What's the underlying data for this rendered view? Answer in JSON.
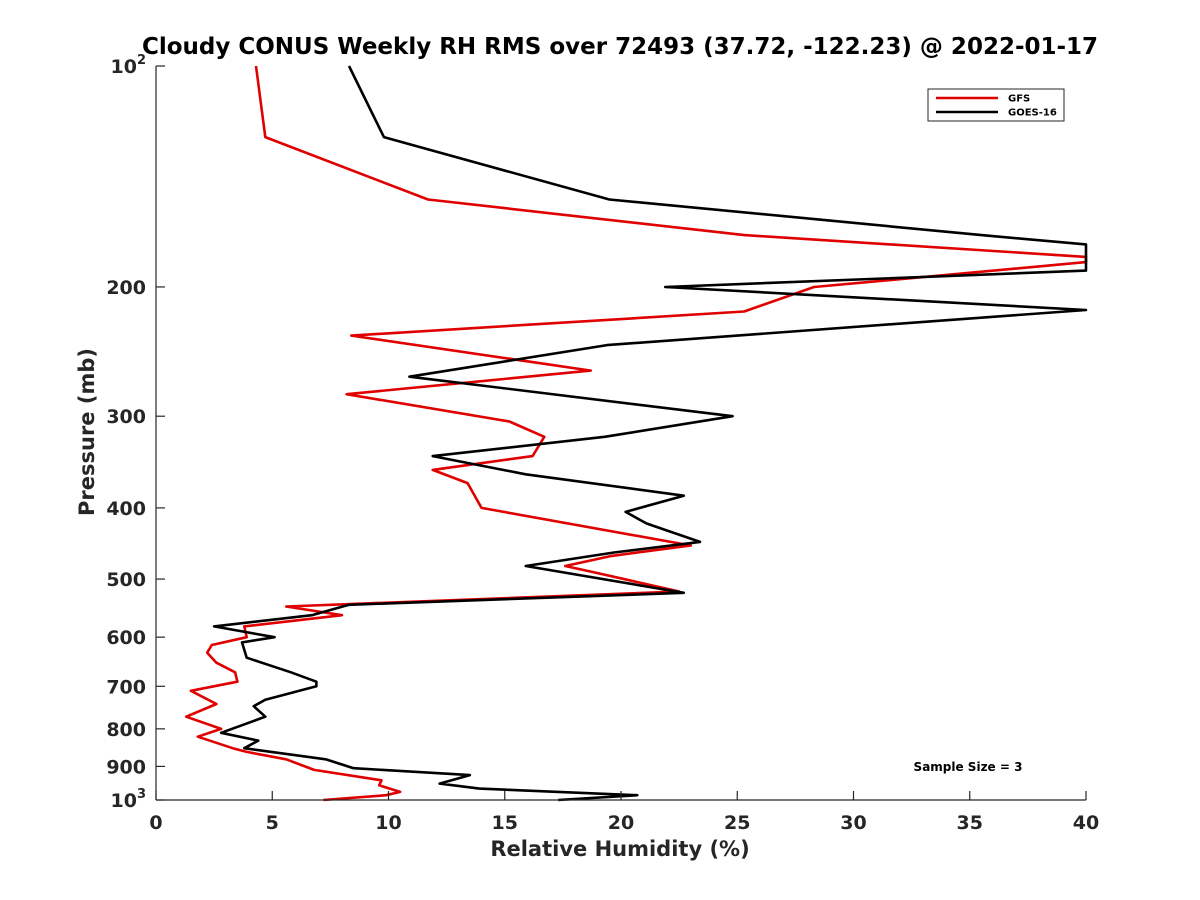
{
  "chart_data": {
    "type": "line",
    "title": "Cloudy CONUS Weekly RH RMS over 72493 (37.72, -122.23) @ 2022-01-17",
    "xlabel": "Relative Humidity (%)",
    "ylabel": "Pressure (mb)",
    "xlim": [
      0,
      40
    ],
    "ylim": [
      100,
      1000
    ],
    "y_scale": "log",
    "y_reversed": true,
    "x_ticks": [
      "0",
      "5",
      "10",
      "15",
      "20",
      "25",
      "30",
      "35",
      "40"
    ],
    "y_ticks": [
      {
        "value": 100,
        "base": "10",
        "exp": "2"
      },
      {
        "value": 200,
        "label": "200"
      },
      {
        "value": 300,
        "label": "300"
      },
      {
        "value": 400,
        "label": "400"
      },
      {
        "value": 500,
        "label": "500"
      },
      {
        "value": 600,
        "label": "600"
      },
      {
        "value": 700,
        "label": "700"
      },
      {
        "value": 800,
        "label": "800"
      },
      {
        "value": 900,
        "label": "900"
      },
      {
        "value": 1000,
        "base": "10",
        "exp": "3"
      }
    ],
    "grid": false,
    "legend_position": "top-right",
    "annotation": "Sample Size = 3",
    "series": [
      {
        "name": "GFS",
        "color": "#e00000",
        "points": [
          [
            4.3,
            100
          ],
          [
            4.7,
            125
          ],
          [
            11.7,
            152
          ],
          [
            25.3,
            170
          ],
          [
            40,
            182
          ],
          [
            40,
            185
          ],
          [
            28.3,
            200
          ],
          [
            25.3,
            216
          ],
          [
            8.4,
            233
          ],
          [
            18.7,
            260
          ],
          [
            8.2,
            280
          ],
          [
            15.2,
            305
          ],
          [
            16.7,
            320
          ],
          [
            16.2,
            340
          ],
          [
            11.9,
            355
          ],
          [
            13.4,
            370
          ],
          [
            14.0,
            400
          ],
          [
            23.0,
            450
          ],
          [
            19.6,
            465
          ],
          [
            17.6,
            480
          ],
          [
            18.9,
            490
          ],
          [
            22.5,
            520
          ],
          [
            5.6,
            545
          ],
          [
            8.0,
            560
          ],
          [
            3.8,
            580
          ],
          [
            3.9,
            600
          ],
          [
            2.4,
            615
          ],
          [
            2.2,
            630
          ],
          [
            2.6,
            650
          ],
          [
            3.4,
            670
          ],
          [
            3.5,
            690
          ],
          [
            1.5,
            710
          ],
          [
            2.6,
            740
          ],
          [
            1.3,
            770
          ],
          [
            2.8,
            800
          ],
          [
            1.8,
            820
          ],
          [
            3.3,
            850
          ],
          [
            3.9,
            860
          ],
          [
            5.6,
            880
          ],
          [
            6.8,
            910
          ],
          [
            9.7,
            940
          ],
          [
            9.6,
            955
          ],
          [
            10.5,
            975
          ],
          [
            9.9,
            985
          ],
          [
            7.2,
            1000
          ]
        ]
      },
      {
        "name": "GOES-16",
        "color": "#000000",
        "points": [
          [
            8.3,
            100
          ],
          [
            9.8,
            125
          ],
          [
            19.5,
            152
          ],
          [
            35.5,
            170
          ],
          [
            40,
            175
          ],
          [
            40,
            190
          ],
          [
            21.9,
            200
          ],
          [
            40,
            215
          ],
          [
            19.4,
            240
          ],
          [
            10.9,
            265
          ],
          [
            24.8,
            300
          ],
          [
            19.3,
            320
          ],
          [
            11.9,
            340
          ],
          [
            15.9,
            360
          ],
          [
            22.7,
            385
          ],
          [
            20.2,
            405
          ],
          [
            21.1,
            420
          ],
          [
            23.4,
            445
          ],
          [
            19.7,
            460
          ],
          [
            15.9,
            480
          ],
          [
            22.7,
            522
          ],
          [
            8.3,
            542
          ],
          [
            6.7,
            560
          ],
          [
            2.5,
            580
          ],
          [
            5.1,
            600
          ],
          [
            3.7,
            610
          ],
          [
            3.9,
            640
          ],
          [
            5.8,
            670
          ],
          [
            6.9,
            690
          ],
          [
            6.9,
            700
          ],
          [
            4.7,
            730
          ],
          [
            4.2,
            745
          ],
          [
            4.7,
            770
          ],
          [
            2.8,
            810
          ],
          [
            4.4,
            830
          ],
          [
            3.8,
            850
          ],
          [
            7.3,
            880
          ],
          [
            8.5,
            905
          ],
          [
            13.5,
            925
          ],
          [
            12.2,
            950
          ],
          [
            13.9,
            965
          ],
          [
            20.7,
            985
          ],
          [
            17.3,
            1000
          ]
        ]
      }
    ]
  }
}
